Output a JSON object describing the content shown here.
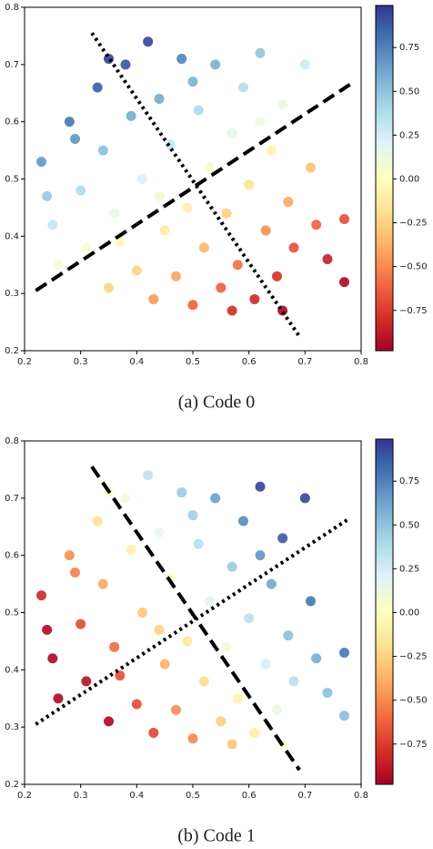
{
  "chart_data": [
    {
      "type": "scatter",
      "caption": "(a) Code 0",
      "colormap": "RdYlBu",
      "x": [
        0.23,
        0.25,
        0.26,
        0.28,
        0.3,
        0.31,
        0.33,
        0.34,
        0.35,
        0.36,
        0.38,
        0.39,
        0.4,
        0.41,
        0.42,
        0.43,
        0.44,
        0.45,
        0.46,
        0.47,
        0.48,
        0.49,
        0.5,
        0.51,
        0.52,
        0.53,
        0.54,
        0.55,
        0.56,
        0.57,
        0.58,
        0.59,
        0.6,
        0.61,
        0.62,
        0.63,
        0.64,
        0.65,
        0.66,
        0.67,
        0.68,
        0.7,
        0.71,
        0.72,
        0.74,
        0.77,
        0.77,
        0.29,
        0.37,
        0.44,
        0.57,
        0.62,
        0.35,
        0.24,
        0.5,
        0.66
      ],
      "y": [
        0.53,
        0.42,
        0.35,
        0.6,
        0.48,
        0.38,
        0.66,
        0.55,
        0.31,
        0.44,
        0.7,
        0.61,
        0.34,
        0.5,
        0.74,
        0.29,
        0.64,
        0.41,
        0.56,
        0.33,
        0.71,
        0.45,
        0.28,
        0.62,
        0.38,
        0.52,
        0.7,
        0.31,
        0.44,
        0.58,
        0.35,
        0.66,
        0.49,
        0.29,
        0.72,
        0.41,
        0.55,
        0.33,
        0.63,
        0.46,
        0.38,
        0.7,
        0.52,
        0.42,
        0.36,
        0.43,
        0.32,
        0.57,
        0.39,
        0.47,
        0.27,
        0.6,
        0.71,
        0.47,
        0.67,
        0.27
      ],
      "c": [
        0.67,
        0.3,
        0.06,
        0.79,
        0.38,
        0.05,
        0.87,
        0.52,
        -0.24,
        0.14,
        0.9,
        0.6,
        -0.25,
        0.22,
        0.95,
        -0.46,
        0.6,
        -0.13,
        0.31,
        -0.42,
        0.74,
        -0.09,
        -0.63,
        0.4,
        -0.36,
        0.05,
        0.58,
        -0.64,
        -0.26,
        0.15,
        -0.58,
        0.36,
        -0.18,
        -0.82,
        0.49,
        -0.49,
        -0.08,
        -0.78,
        0.13,
        -0.41,
        -0.68,
        0.27,
        -0.31,
        -0.63,
        -0.86,
        -0.7,
        -0.95,
        0.68,
        -0.04,
        0.08,
        -0.8,
        0.12,
        0.95,
        0.47,
        0.57,
        -0.95
      ],
      "lines": [
        {
          "style": "dotted",
          "x": [
            0.32,
            0.69
          ],
          "y": [
            0.755,
            0.225
          ]
        },
        {
          "style": "dashed",
          "x": [
            0.22,
            0.78
          ],
          "y": [
            0.305,
            0.665
          ]
        }
      ],
      "xlim": [
        0.2,
        0.8
      ],
      "ylim": [
        0.2,
        0.8
      ],
      "xticks": [
        0.2,
        0.3,
        0.4,
        0.5,
        0.6,
        0.7,
        0.8
      ],
      "yticks": [
        0.2,
        0.3,
        0.4,
        0.5,
        0.6,
        0.7,
        0.8
      ],
      "clim": [
        -0.98,
        0.99
      ],
      "cticks": [
        {
          "value": 0.75,
          "label": "0.75"
        },
        {
          "value": 0.5,
          "label": "0.50"
        },
        {
          "value": 0.25,
          "label": "0.25"
        },
        {
          "value": 0,
          "label": "0.00"
        },
        {
          "value": -0.25,
          "label": "−0.25"
        },
        {
          "value": -0.5,
          "label": "−0.50"
        },
        {
          "value": -0.75,
          "label": "−0.75"
        }
      ]
    },
    {
      "type": "scatter",
      "caption": "(b) Code 1",
      "colormap": "RdYlBu",
      "x": [
        0.23,
        0.25,
        0.26,
        0.28,
        0.3,
        0.31,
        0.33,
        0.34,
        0.35,
        0.36,
        0.38,
        0.39,
        0.4,
        0.41,
        0.42,
        0.43,
        0.44,
        0.45,
        0.46,
        0.47,
        0.48,
        0.49,
        0.5,
        0.51,
        0.52,
        0.53,
        0.54,
        0.55,
        0.56,
        0.57,
        0.58,
        0.59,
        0.6,
        0.61,
        0.62,
        0.63,
        0.64,
        0.65,
        0.66,
        0.67,
        0.68,
        0.7,
        0.71,
        0.72,
        0.74,
        0.77,
        0.77,
        0.29,
        0.37,
        0.44,
        0.57,
        0.62,
        0.35,
        0.24,
        0.5,
        0.66
      ],
      "y": [
        0.53,
        0.42,
        0.35,
        0.6,
        0.48,
        0.38,
        0.66,
        0.55,
        0.31,
        0.44,
        0.7,
        0.61,
        0.34,
        0.5,
        0.74,
        0.29,
        0.64,
        0.41,
        0.56,
        0.33,
        0.71,
        0.45,
        0.28,
        0.62,
        0.38,
        0.52,
        0.7,
        0.31,
        0.44,
        0.58,
        0.35,
        0.66,
        0.49,
        0.29,
        0.72,
        0.41,
        0.55,
        0.33,
        0.63,
        0.46,
        0.38,
        0.7,
        0.52,
        0.42,
        0.36,
        0.43,
        0.32,
        0.57,
        0.39,
        0.47,
        0.27,
        0.6,
        0.71,
        0.47,
        0.67,
        0.27
      ],
      "c": [
        -0.83,
        -0.95,
        -0.95,
        -0.49,
        -0.71,
        -0.92,
        -0.18,
        -0.41,
        -0.95,
        -0.6,
        0.09,
        -0.09,
        -0.7,
        -0.29,
        0.33,
        -0.72,
        0.15,
        -0.37,
        0.03,
        -0.49,
        0.46,
        -0.13,
        -0.51,
        0.35,
        -0.2,
        0.18,
        0.64,
        -0.26,
        0.09,
        0.46,
        -0.07,
        0.72,
        0.34,
        -0.1,
        0.95,
        0.25,
        0.62,
        0.13,
        0.89,
        0.51,
        0.35,
        0.95,
        0.79,
        0.59,
        0.51,
        0.79,
        0.52,
        -0.53,
        -0.69,
        -0.25,
        -0.29,
        0.68,
        0.01,
        -0.94,
        0.44,
        0.03
      ],
      "lines": [
        {
          "style": "dashed",
          "x": [
            0.32,
            0.69
          ],
          "y": [
            0.755,
            0.225
          ]
        },
        {
          "style": "dotted",
          "x": [
            0.22,
            0.78
          ],
          "y": [
            0.305,
            0.665
          ]
        }
      ],
      "xlim": [
        0.2,
        0.8
      ],
      "ylim": [
        0.2,
        0.8
      ],
      "xticks": [
        0.2,
        0.3,
        0.4,
        0.5,
        0.6,
        0.7,
        0.8
      ],
      "yticks": [
        0.2,
        0.3,
        0.4,
        0.5,
        0.6,
        0.7,
        0.8
      ],
      "clim": [
        -0.98,
        0.99
      ],
      "cticks": [
        {
          "value": 0.75,
          "label": "0.75"
        },
        {
          "value": 0.5,
          "label": "0.50"
        },
        {
          "value": 0.25,
          "label": "0.25"
        },
        {
          "value": 0,
          "label": "0.00"
        },
        {
          "value": -0.25,
          "label": "−0.25"
        },
        {
          "value": -0.5,
          "label": "−0.50"
        },
        {
          "value": -0.75,
          "label": "−0.75"
        }
      ]
    }
  ]
}
